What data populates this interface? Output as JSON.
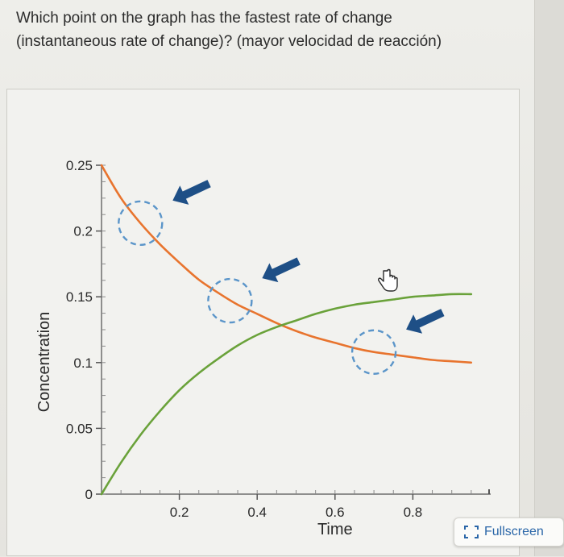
{
  "question": {
    "line1": "Which point on the graph has the fastest rate of change",
    "line2": "(instantaneous rate of change)? (mayor velocidad de reacción)"
  },
  "fullscreen_button": {
    "label": "Fullscreen",
    "icon": "fullscreen-icon"
  },
  "colors": {
    "reactant": "#e8742e",
    "product": "#6aa23a",
    "arrow": "#1e4f86",
    "circle": "#5b95c9"
  },
  "chart_data": {
    "type": "line",
    "xlabel": "Time",
    "ylabel": "Concentration",
    "xlim": [
      0,
      1.0
    ],
    "ylim": [
      0,
      0.25
    ],
    "x_ticks": [
      0.2,
      0.4,
      0.6,
      0.8
    ],
    "x_tick_labels": [
      "0.2",
      "0.4",
      "0.6",
      "0.8"
    ],
    "y_ticks": [
      0,
      0.05,
      0.1,
      0.15,
      0.2,
      0.25
    ],
    "y_tick_labels": [
      "0",
      "0.05",
      "0.1",
      "0.15",
      "0.2",
      "0.25"
    ],
    "series": [
      {
        "role": "reactant",
        "color": "#e8742e",
        "x": [
          0,
          0.05,
          0.1,
          0.15,
          0.2,
          0.25,
          0.3,
          0.35,
          0.4,
          0.45,
          0.5,
          0.55,
          0.6,
          0.65,
          0.7,
          0.75,
          0.8,
          0.85,
          0.9,
          0.95
        ],
        "y": [
          0.25,
          0.225,
          0.206,
          0.19,
          0.176,
          0.163,
          0.153,
          0.144,
          0.137,
          0.13,
          0.124,
          0.119,
          0.115,
          0.111,
          0.108,
          0.106,
          0.104,
          0.102,
          0.101,
          0.1
        ]
      },
      {
        "role": "product",
        "color": "#6aa23a",
        "x": [
          0,
          0.05,
          0.1,
          0.15,
          0.2,
          0.25,
          0.3,
          0.35,
          0.4,
          0.45,
          0.5,
          0.55,
          0.6,
          0.65,
          0.7,
          0.75,
          0.8,
          0.85,
          0.9,
          0.95
        ],
        "y": [
          0.0,
          0.024,
          0.045,
          0.063,
          0.079,
          0.092,
          0.103,
          0.113,
          0.121,
          0.127,
          0.132,
          0.137,
          0.141,
          0.144,
          0.146,
          0.148,
          0.15,
          0.151,
          0.152,
          0.152
        ]
      }
    ],
    "highlighted_points": [
      {
        "x": 0.1,
        "y": 0.206
      },
      {
        "x": 0.33,
        "y": 0.147
      },
      {
        "x": 0.7,
        "y": 0.108
      }
    ]
  }
}
